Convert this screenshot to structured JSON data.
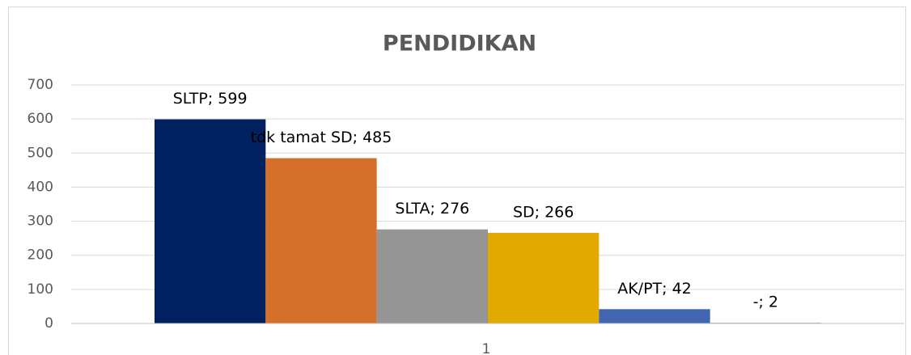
{
  "chart_data": {
    "type": "bar",
    "title": "PENDIDIKAN",
    "categories": [
      "1"
    ],
    "series": [
      {
        "color": "#002060",
        "values": [
          599
        ],
        "value_labels": [
          "SLTP; 599"
        ]
      },
      {
        "color": "#d5702b",
        "values": [
          485
        ],
        "value_labels": [
          "tdk tamat SD; 485"
        ]
      },
      {
        "color": "#959595",
        "values": [
          276
        ],
        "value_labels": [
          "SLTA; 276"
        ]
      },
      {
        "color": "#e2a900",
        "values": [
          266
        ],
        "value_labels": [
          "SD; 266"
        ]
      },
      {
        "color": "#4066b0",
        "values": [
          42
        ],
        "value_labels": [
          "AK/PT; 42"
        ]
      },
      {
        "color": "#70a050",
        "values": [
          2
        ],
        "value_labels": [
          "-; 2"
        ]
      }
    ],
    "ylim": [
      0,
      700
    ],
    "yticks": [
      0,
      100,
      200,
      300,
      400,
      500,
      600,
      700
    ],
    "grid": true
  }
}
